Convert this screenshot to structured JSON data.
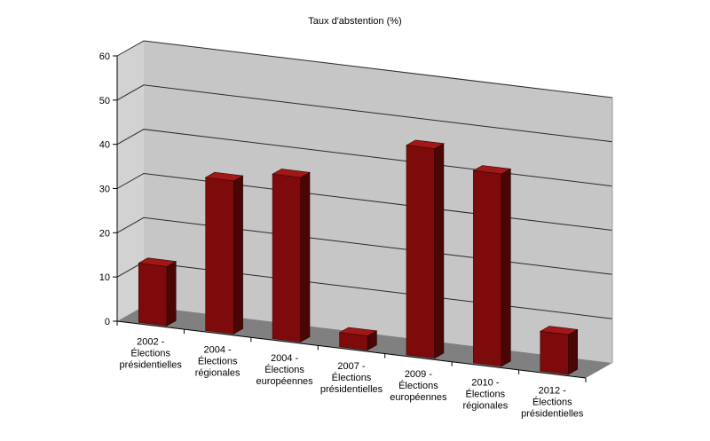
{
  "chart_data": {
    "type": "bar",
    "title": "Taux d'abstention (%)",
    "xlabel": "",
    "ylabel": "",
    "ylim": [
      0,
      60
    ],
    "yticks": [
      0,
      10,
      20,
      30,
      40,
      50,
      60
    ],
    "grid": true,
    "categories": [
      [
        "2002 -",
        "Élections",
        "présidentielles"
      ],
      [
        "2004 -",
        "Élections",
        "régionales"
      ],
      [
        "2004 -",
        "Élections",
        "européennes"
      ],
      [
        "2007 -",
        "Élections",
        "présidentielles"
      ],
      [
        "2009 -",
        "Élections",
        "européennes"
      ],
      [
        "2010 -",
        "Élections",
        "régionales"
      ],
      [
        "2012 -",
        "Élections",
        "présidentielles"
      ]
    ],
    "values": [
      13.4,
      34.6,
      37.2,
      3.2,
      47.4,
      43.5,
      9.0
    ],
    "colors": {
      "bar_front": "#7e0b0b",
      "bar_top": "#a01818",
      "bar_side": "#4a0505",
      "back_wall": "#c6c6c6",
      "left_wall": "#d2d2d2",
      "floor": "#808080",
      "grid": "#2a2a2a"
    }
  }
}
